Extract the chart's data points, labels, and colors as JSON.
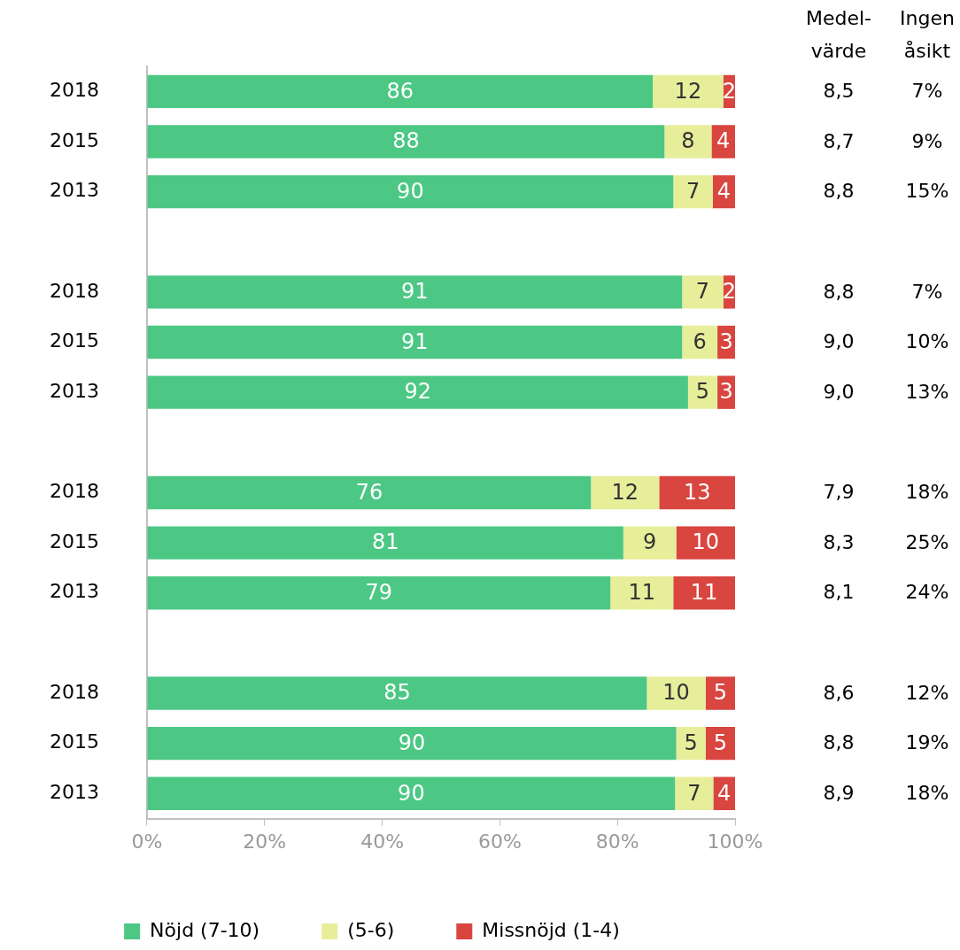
{
  "chart_data": {
    "type": "bar",
    "orientation": "horizontal",
    "stacked": true,
    "categories": [
      "2018",
      "2015",
      "2013",
      null,
      "2018",
      "2015",
      "2013",
      null,
      "2018",
      "2015",
      "2013",
      null,
      "2018",
      "2015",
      "2013"
    ],
    "series": [
      {
        "name": "Nöjd (7-10)",
        "color": "#4cc784",
        "values": [
          86,
          88,
          89.5,
          null,
          91,
          91,
          92,
          null,
          75.5,
          81,
          78.8,
          null,
          85,
          90,
          89.8
        ],
        "value_labels": [
          "86",
          "88",
          "90",
          null,
          "91",
          "91",
          "92",
          null,
          "76",
          "81",
          "79",
          null,
          "85",
          "90",
          "90"
        ]
      },
      {
        "name": "(5-6)",
        "color": "#e6ee9a",
        "values": [
          12,
          8,
          6.7,
          null,
          7,
          6,
          5,
          null,
          11.6,
          9,
          10.7,
          null,
          10,
          5,
          6.5
        ],
        "value_labels": [
          "12",
          "8",
          "7",
          null,
          "7",
          "6",
          "5",
          null,
          "12",
          "9",
          "11",
          null,
          "10",
          "5",
          "7"
        ]
      },
      {
        "name": "Missnöjd (1-4)",
        "color": "#d9453f",
        "values": [
          2,
          4,
          3.8,
          null,
          2,
          3,
          3,
          null,
          12.9,
          10,
          10.5,
          null,
          5,
          5,
          3.7
        ],
        "value_labels": [
          "2",
          "4",
          "4",
          null,
          "2",
          "3",
          "3",
          null,
          "13",
          "10",
          "11",
          null,
          "5",
          "5",
          "4"
        ]
      }
    ],
    "xlim": [
      0,
      100
    ],
    "xticks": [
      {
        "value": 0,
        "label": "0%"
      },
      {
        "value": 20,
        "label": "20%"
      },
      {
        "value": 40,
        "label": "40%"
      },
      {
        "value": 60,
        "label": "60%"
      },
      {
        "value": 80,
        "label": "80%"
      },
      {
        "value": 100,
        "label": "100%"
      }
    ],
    "legend": "bottom",
    "grid": false,
    "annotations": [
      "Medel-\nvärde",
      "Ingen\nåsikt",
      "8,5",
      "7%",
      "8,7",
      "9%",
      "8,8",
      "15%",
      "8,8",
      "7%",
      "9,0",
      "10%",
      "9,0",
      "13%",
      "7,9",
      "18%",
      "8,3",
      "25%",
      "8,1",
      "24%",
      "8,6",
      "12%",
      "8,8",
      "19%",
      "8,9",
      "18%"
    ]
  }
}
